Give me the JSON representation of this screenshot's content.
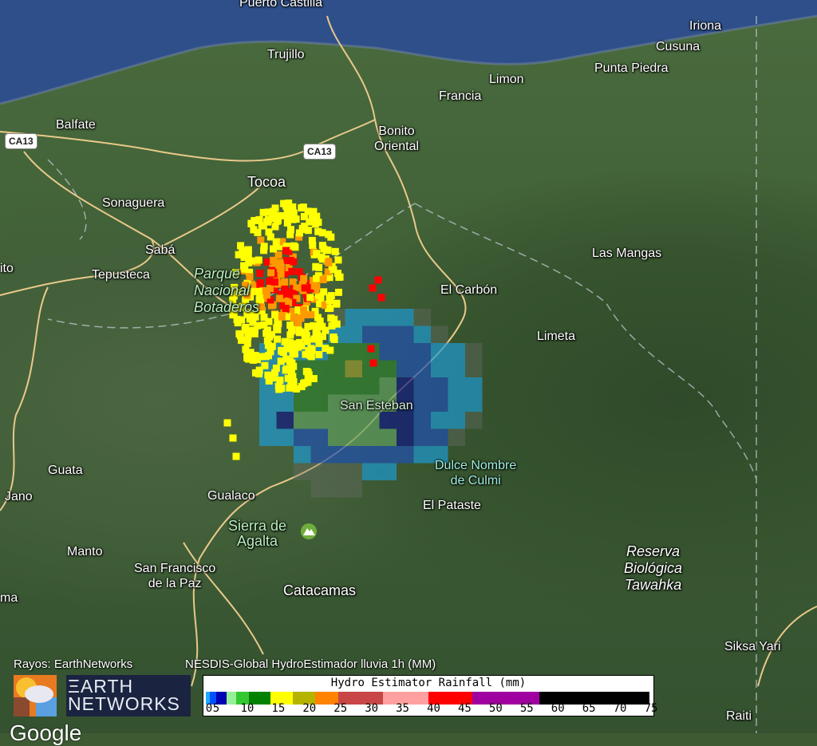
{
  "map": {
    "labels": {
      "puerto_castilla": "Puerto Castilla",
      "trujillo": "Trujillo",
      "iriona": "Iriona",
      "cusuna": "Cusuna",
      "punta_piedra": "Punta Piedra",
      "limon": "Limon",
      "francia": "Francia",
      "balfate": "Balfate",
      "bonito_oriental": "Bonito\nOriental",
      "tocoa": "Tocoa",
      "sonaguera": "Sonaguera",
      "saba": "Sabá",
      "tepusteca": "Tepusteca",
      "ito": "ito",
      "parque": "Parque\nNacional\nBotaderos",
      "las_mangas": "Las Mangas",
      "el_carbon": "El Carbón",
      "limeta": "Limeta",
      "san_esteban": "San Esteban",
      "dulce_nombre": "Dulce Nombre\nde Culmi",
      "el_pataste": "El Pataste",
      "guata": "Guata",
      "jano": "Jano",
      "gualaco": "Gualaco",
      "sierra": "Sierra de\nAgalta",
      "manto": "Manto",
      "san_francisco": "San Francisco\nde la Paz",
      "catacamas": "Catacamas",
      "ma": "ma",
      "reserva": "Reserva\nBiológica\nTawahka",
      "siksa_yari": "Siksa Yari",
      "raiti": "Raiti"
    },
    "road_shields": [
      "CA13",
      "CA13"
    ],
    "colors": {
      "sea": "#2f4f8a",
      "land": "#3f5f36",
      "roads": "#e8c98a"
    }
  },
  "legend": {
    "rayos_label": "Rayos: EarthNetworks",
    "product_label": "NESDIS-Global HydroEstimador lluvia 1h (MM)",
    "logo_text": "EARTH NETWORKS",
    "colorbar": {
      "title": "Hydro Estimator Rainfall (mm)",
      "ticks": [
        "0",
        "5",
        "10",
        "15",
        "20",
        "25",
        "30",
        "35",
        "40",
        "45",
        "50",
        "55",
        "60",
        "65",
        "70",
        "75"
      ],
      "colors": [
        "#1eaaff",
        "#0050ff",
        "#0000b4",
        "#96f096",
        "#32c832",
        "#008200",
        "#ffff00",
        "#b4b400",
        "#ff8200",
        "#c84646",
        "#ffa0a0",
        "#ff0000",
        "#a000a0",
        "#000000"
      ]
    }
  },
  "lightning_colors": [
    "#ffff00",
    "#ff9900",
    "#ff0000"
  ],
  "attribution": "Google"
}
